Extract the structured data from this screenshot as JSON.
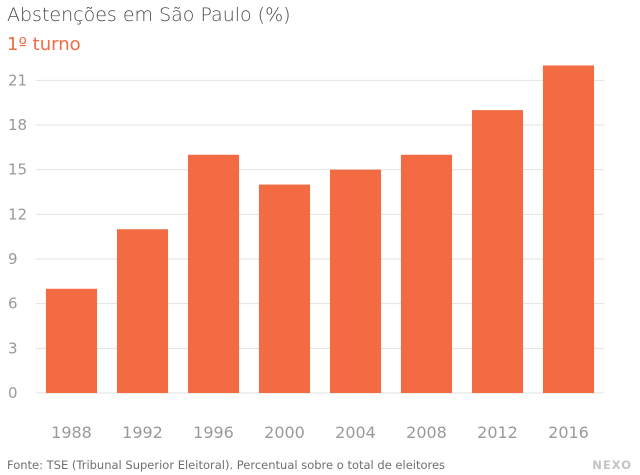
{
  "chart_data": {
    "type": "bar",
    "title": "Abstenções em São Paulo (%)",
    "subtitle": "1º turno",
    "categories": [
      "1988",
      "1992",
      "1996",
      "2000",
      "2004",
      "2008",
      "2012",
      "2016"
    ],
    "values": [
      7,
      11,
      16,
      14,
      15,
      16,
      19,
      22
    ],
    "yticks": [
      0,
      3,
      6,
      9,
      12,
      15,
      18,
      21
    ],
    "ylim": [
      0,
      22.5
    ],
    "grid": true,
    "bar_color": "#f26b43"
  },
  "footer": {
    "source": "Fonte: TSE (Tribunal Superior Eleitoral). Percentual sobre o total de eleitores",
    "brand": "NEXO"
  }
}
